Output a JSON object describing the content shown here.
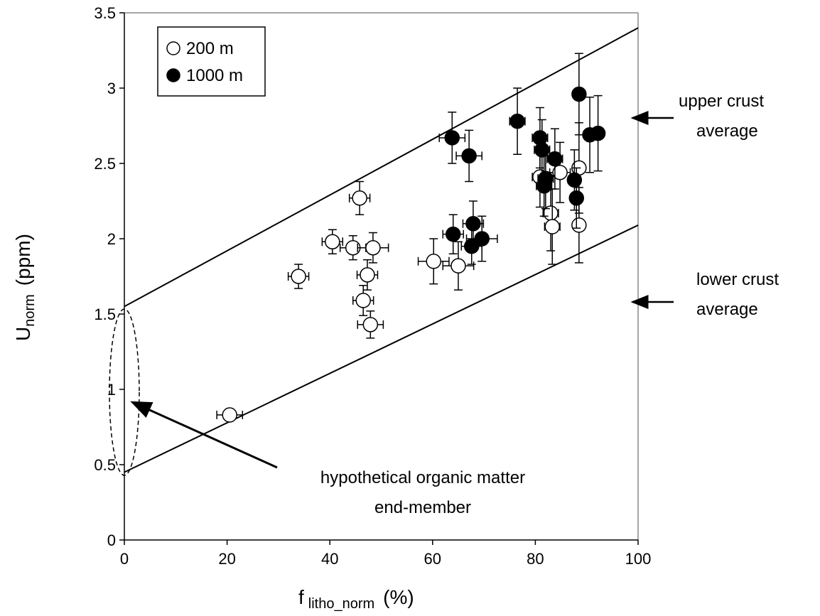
{
  "chart_data": {
    "type": "scatter",
    "x_label": {
      "main": "f",
      "sub": "litho_norm",
      "unit": "(%)"
    },
    "y_label": {
      "main": "U",
      "sub": "norm",
      "unit": "(ppm)"
    },
    "xlim": [
      0,
      100
    ],
    "xticks": [
      0,
      20,
      40,
      60,
      80,
      100
    ],
    "ylim": [
      0,
      3.5
    ],
    "yticks": [
      0,
      0.5,
      1,
      1.5,
      2,
      2.5,
      3,
      3.5
    ],
    "grid": false,
    "legend": "upper left",
    "series": [
      {
        "name": "200 m",
        "color": "#ffffff",
        "x": [
          20.5,
          33.9,
          40.5,
          44.5,
          48.4,
          45.8,
          47.3,
          46.5,
          47.9,
          60.2,
          65.0,
          80.9,
          84.8,
          83.0,
          83.3,
          88.5,
          88.5
        ],
        "values": [
          0.83,
          1.75,
          1.98,
          1.94,
          1.94,
          2.27,
          1.76,
          1.59,
          1.43,
          1.85,
          1.82,
          2.41,
          2.44,
          2.17,
          2.08,
          2.47,
          2.09
        ],
        "xerr": [
          2.5,
          2,
          2,
          2.5,
          3,
          2,
          2,
          2,
          2.5,
          3,
          3,
          1.5,
          2,
          1.5,
          1.5,
          1,
          1
        ],
        "yerr": [
          0.03,
          0.08,
          0.08,
          0.08,
          0.1,
          0.11,
          0.1,
          0.1,
          0.09,
          0.15,
          0.16,
          0.2,
          0.2,
          0.25,
          0.25,
          0.3,
          0.25
        ]
      },
      {
        "name": "1000 m",
        "color": "#000000",
        "x": [
          63.8,
          67.1,
          76.5,
          64.0,
          67.9,
          67.6,
          69.6,
          80.9,
          81.3,
          82.0,
          81.7,
          83.8,
          87.6,
          88.0,
          88.5,
          90.6,
          92.2
        ],
        "values": [
          2.67,
          2.55,
          2.78,
          2.03,
          2.1,
          1.95,
          2.0,
          2.67,
          2.59,
          2.4,
          2.35,
          2.53,
          2.39,
          2.27,
          2.96,
          2.69,
          2.7
        ],
        "xerr": [
          2.5,
          2.5,
          1.5,
          2,
          2,
          2,
          3,
          1.5,
          1.5,
          1.5,
          1.5,
          1.5,
          1,
          1,
          1,
          1,
          1
        ],
        "yerr": [
          0.17,
          0.17,
          0.22,
          0.13,
          0.15,
          0.12,
          0.15,
          0.2,
          0.2,
          0.2,
          0.2,
          0.2,
          0.2,
          0.2,
          0.27,
          0.25,
          0.25
        ]
      }
    ],
    "reference_lines": [
      {
        "x": [
          0,
          100
        ],
        "y": [
          1.55,
          3.4
        ]
      },
      {
        "x": [
          0,
          100
        ],
        "y": [
          0.45,
          2.09
        ]
      }
    ],
    "annotations": [
      {
        "lines": [
          "upper crust",
          "average"
        ]
      },
      {
        "lines": [
          "lower crust",
          "average"
        ]
      },
      {
        "lines": [
          "hypothetical organic matter",
          "end-member"
        ]
      }
    ]
  }
}
